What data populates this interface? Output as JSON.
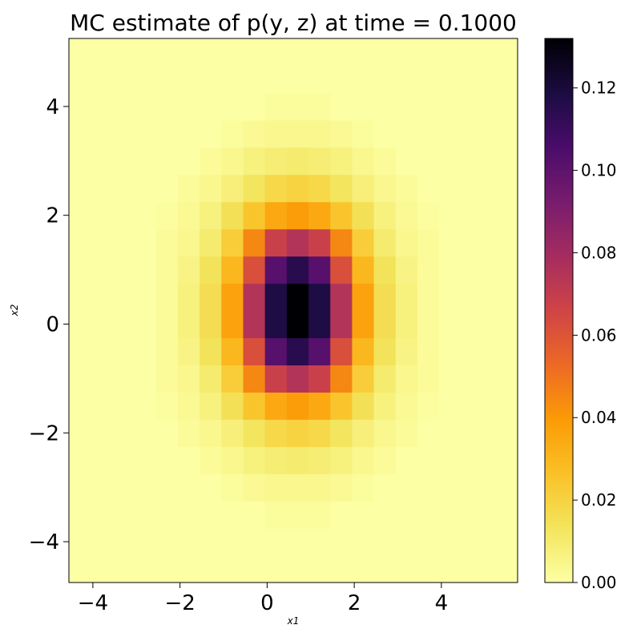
{
  "chart_data": {
    "type": "heatmap",
    "title": "MC estimate of p(y, z) at time = 0.1000",
    "xlabel": "x1",
    "ylabel": "x2",
    "xlim": [
      -4.55,
      5.75
    ],
    "ylim": [
      -4.75,
      5.25
    ],
    "xticks": [
      -4,
      -2,
      0,
      2,
      4
    ],
    "yticks": [
      -4,
      -2,
      0,
      2,
      4
    ],
    "xtick_labels": [
      "−4",
      "−2",
      "0",
      "2",
      "4"
    ],
    "ytick_labels": [
      "−4",
      "−2",
      "0",
      "2",
      "4"
    ],
    "colormap": "inferno_r",
    "colorbar": {
      "vmin": 0.0,
      "vmax": 0.132,
      "ticks": [
        0.0,
        0.02,
        0.04,
        0.06,
        0.08,
        0.1,
        0.12
      ],
      "tick_labels": [
        "0.00",
        "0.02",
        "0.04",
        "0.06",
        "0.08",
        "0.10",
        "0.12"
      ]
    },
    "grid": false,
    "bins": {
      "x_edges": [
        -4.55,
        -4.05,
        -3.55,
        -3.05,
        -2.55,
        -2.05,
        -1.55,
        -1.05,
        -0.55,
        -0.05,
        0.45,
        0.95,
        1.45,
        1.95,
        2.45,
        2.95,
        3.45,
        3.95,
        4.45,
        4.95,
        5.45,
        5.75
      ],
      "y_edges": [
        -4.75,
        -4.25,
        -3.75,
        -3.25,
        -2.75,
        -2.25,
        -1.75,
        -1.25,
        -0.75,
        -0.25,
        0.25,
        0.75,
        1.25,
        1.75,
        2.25,
        2.75,
        3.25,
        3.75,
        4.25,
        4.75,
        5.25
      ],
      "values": [
        [
          0,
          0,
          0,
          0,
          0,
          0,
          0,
          0,
          0,
          0,
          0,
          0,
          0,
          0,
          0,
          0,
          0,
          0,
          0,
          0,
          0
        ],
        [
          0,
          0,
          0,
          0,
          0,
          0,
          0,
          0,
          0,
          0,
          0,
          0,
          0,
          0,
          0,
          0,
          0,
          0,
          0,
          0,
          0
        ],
        [
          0,
          0,
          0,
          0,
          0,
          0,
          0,
          0,
          0,
          0.0015,
          0.0015,
          0.0015,
          0,
          0,
          0,
          0,
          0,
          0,
          0,
          0,
          0
        ],
        [
          0,
          0,
          0,
          0,
          0,
          0,
          0,
          0.0015,
          0.003,
          0.004,
          0.004,
          0.004,
          0.003,
          0.0015,
          0,
          0,
          0,
          0,
          0,
          0,
          0
        ],
        [
          0,
          0,
          0,
          0,
          0,
          0,
          0.002,
          0.004,
          0.007,
          0.009,
          0.01,
          0.009,
          0.007,
          0.004,
          0.002,
          0,
          0,
          0,
          0,
          0,
          0
        ],
        [
          0,
          0,
          0,
          0,
          0,
          0.002,
          0.004,
          0.008,
          0.013,
          0.018,
          0.02,
          0.018,
          0.013,
          0.008,
          0.004,
          0.002,
          0,
          0,
          0,
          0,
          0
        ],
        [
          0,
          0,
          0,
          0,
          0.001,
          0.003,
          0.007,
          0.015,
          0.025,
          0.035,
          0.039,
          0.035,
          0.025,
          0.015,
          0.007,
          0.003,
          0.001,
          0,
          0,
          0,
          0
        ],
        [
          0,
          0,
          0,
          0,
          0.002,
          0.004,
          0.01,
          0.022,
          0.045,
          0.068,
          0.075,
          0.068,
          0.045,
          0.022,
          0.01,
          0.004,
          0.002,
          0,
          0,
          0,
          0
        ],
        [
          0,
          0,
          0,
          0,
          0.002,
          0.006,
          0.014,
          0.03,
          0.062,
          0.102,
          0.115,
          0.102,
          0.062,
          0.03,
          0.014,
          0.006,
          0.002,
          0,
          0,
          0,
          0
        ],
        [
          0,
          0,
          0,
          0,
          0.002,
          0.007,
          0.016,
          0.037,
          0.075,
          0.118,
          0.132,
          0.118,
          0.075,
          0.037,
          0.016,
          0.007,
          0.002,
          0,
          0,
          0,
          0
        ],
        [
          0,
          0,
          0,
          0,
          0.002,
          0.007,
          0.016,
          0.037,
          0.075,
          0.118,
          0.132,
          0.118,
          0.075,
          0.037,
          0.016,
          0.007,
          0.002,
          0,
          0,
          0,
          0
        ],
        [
          0,
          0,
          0,
          0,
          0.002,
          0.006,
          0.014,
          0.03,
          0.062,
          0.102,
          0.115,
          0.102,
          0.062,
          0.03,
          0.014,
          0.006,
          0.002,
          0,
          0,
          0,
          0
        ],
        [
          0,
          0,
          0,
          0,
          0.002,
          0.004,
          0.01,
          0.022,
          0.045,
          0.068,
          0.075,
          0.068,
          0.045,
          0.022,
          0.01,
          0.004,
          0.002,
          0,
          0,
          0,
          0
        ],
        [
          0,
          0,
          0,
          0,
          0.001,
          0.003,
          0.007,
          0.015,
          0.025,
          0.035,
          0.039,
          0.035,
          0.025,
          0.015,
          0.007,
          0.003,
          0.001,
          0,
          0,
          0,
          0
        ],
        [
          0,
          0,
          0,
          0,
          0,
          0.002,
          0.004,
          0.008,
          0.013,
          0.018,
          0.02,
          0.018,
          0.013,
          0.008,
          0.004,
          0.002,
          0,
          0,
          0,
          0,
          0
        ],
        [
          0,
          0,
          0,
          0,
          0,
          0,
          0.002,
          0.004,
          0.007,
          0.009,
          0.01,
          0.009,
          0.007,
          0.004,
          0.002,
          0,
          0,
          0,
          0,
          0,
          0
        ],
        [
          0,
          0,
          0,
          0,
          0,
          0,
          0,
          0.0015,
          0.003,
          0.004,
          0.004,
          0.004,
          0.003,
          0.0015,
          0,
          0,
          0,
          0,
          0,
          0,
          0
        ],
        [
          0,
          0,
          0,
          0,
          0,
          0,
          0,
          0,
          0,
          0.0015,
          0.0015,
          0.0015,
          0,
          0,
          0,
          0,
          0,
          0,
          0,
          0,
          0
        ],
        [
          0,
          0,
          0,
          0,
          0,
          0,
          0,
          0,
          0,
          0,
          0,
          0,
          0,
          0,
          0,
          0,
          0,
          0,
          0,
          0,
          0
        ],
        [
          0,
          0,
          0,
          0,
          0,
          0,
          0,
          0,
          0,
          0,
          0,
          0,
          0,
          0,
          0,
          0,
          0,
          0,
          0,
          0,
          0
        ]
      ]
    }
  }
}
